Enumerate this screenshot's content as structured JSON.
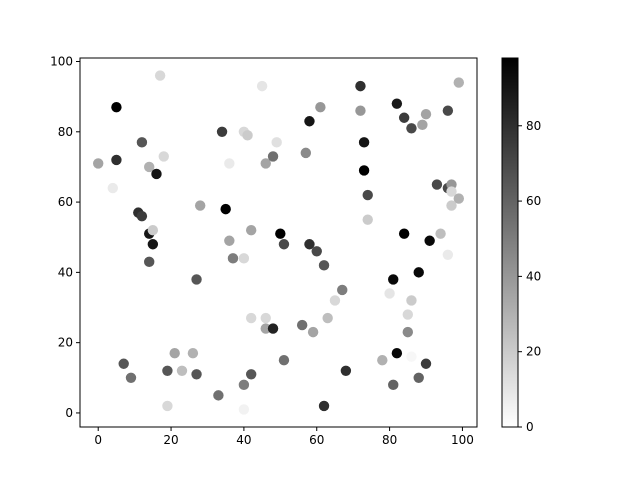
{
  "chart_data": {
    "type": "scatter",
    "title": "",
    "xlabel": "",
    "ylabel": "",
    "xlim": [
      -5,
      104
    ],
    "ylim": [
      -4,
      101
    ],
    "xticks": [
      0,
      20,
      40,
      60,
      80,
      100
    ],
    "yticks": [
      0,
      20,
      40,
      60,
      80,
      100
    ],
    "grid": false,
    "colormap": "gray_r",
    "colorbar": {
      "range": [
        0,
        98
      ],
      "ticks": [
        0,
        20,
        40,
        60,
        80
      ]
    },
    "points": [
      [
        0,
        71,
        35
      ],
      [
        4,
        64,
        8
      ],
      [
        5,
        87,
        98
      ],
      [
        5,
        72,
        80
      ],
      [
        7,
        14,
        65
      ],
      [
        9,
        10,
        55
      ],
      [
        11,
        57,
        80
      ],
      [
        12,
        56,
        75
      ],
      [
        12,
        77,
        65
      ],
      [
        14,
        70,
        30
      ],
      [
        14,
        51,
        90
      ],
      [
        14,
        43,
        65
      ],
      [
        15,
        48,
        90
      ],
      [
        15,
        52,
        20
      ],
      [
        16,
        68,
        90
      ],
      [
        17,
        96,
        15
      ],
      [
        18,
        73,
        15
      ],
      [
        19,
        2,
        15
      ],
      [
        19,
        12,
        65
      ],
      [
        21,
        17,
        35
      ],
      [
        23,
        12,
        25
      ],
      [
        26,
        17,
        30
      ],
      [
        27,
        11,
        65
      ],
      [
        27,
        38,
        65
      ],
      [
        28,
        59,
        35
      ],
      [
        33,
        5,
        55
      ],
      [
        34,
        80,
        75
      ],
      [
        35,
        58,
        98
      ],
      [
        36,
        71,
        8
      ],
      [
        36,
        49,
        35
      ],
      [
        37,
        44,
        50
      ],
      [
        40,
        80,
        15
      ],
      [
        41,
        79,
        20
      ],
      [
        40,
        44,
        15
      ],
      [
        40,
        8,
        50
      ],
      [
        40,
        1,
        5
      ],
      [
        42,
        52,
        35
      ],
      [
        42,
        27,
        15
      ],
      [
        42,
        11,
        65
      ],
      [
        45,
        93,
        10
      ],
      [
        46,
        27,
        15
      ],
      [
        46,
        24,
        35
      ],
      [
        46,
        71,
        35
      ],
      [
        48,
        73,
        55
      ],
      [
        48,
        24,
        85
      ],
      [
        49,
        77,
        12
      ],
      [
        49,
        48,
        0
      ],
      [
        50,
        51,
        98
      ],
      [
        51,
        48,
        70
      ],
      [
        51,
        15,
        55
      ],
      [
        56,
        25,
        55
      ],
      [
        57,
        74,
        45
      ],
      [
        58,
        83,
        90
      ],
      [
        58,
        48,
        80
      ],
      [
        59,
        23,
        35
      ],
      [
        60,
        46,
        70
      ],
      [
        61,
        87,
        40
      ],
      [
        62,
        42,
        65
      ],
      [
        62,
        2,
        80
      ],
      [
        63,
        27,
        25
      ],
      [
        65,
        32,
        15
      ],
      [
        67,
        35,
        50
      ],
      [
        68,
        12,
        80
      ],
      [
        72,
        93,
        80
      ],
      [
        72,
        86,
        40
      ],
      [
        73,
        77,
        90
      ],
      [
        73,
        69,
        98
      ],
      [
        74,
        62,
        70
      ],
      [
        74,
        55,
        20
      ],
      [
        78,
        15,
        30
      ],
      [
        80,
        34,
        10
      ],
      [
        81,
        38,
        95
      ],
      [
        81,
        8,
        60
      ],
      [
        82,
        88,
        88
      ],
      [
        82,
        17,
        95
      ],
      [
        84,
        84,
        75
      ],
      [
        84,
        51,
        98
      ],
      [
        85,
        23,
        45
      ],
      [
        85,
        28,
        15
      ],
      [
        86,
        81,
        70
      ],
      [
        86,
        32,
        20
      ],
      [
        86,
        16,
        3
      ],
      [
        88,
        40,
        95
      ],
      [
        88,
        10,
        60
      ],
      [
        89,
        82,
        35
      ],
      [
        90,
        85,
        35
      ],
      [
        90,
        14,
        75
      ],
      [
        91,
        49,
        95
      ],
      [
        93,
        65,
        70
      ],
      [
        94,
        51,
        25
      ],
      [
        96,
        45,
        8
      ],
      [
        96,
        64,
        70
      ],
      [
        96,
        86,
        70
      ],
      [
        97,
        65,
        40
      ],
      [
        97,
        63,
        15
      ],
      [
        97,
        59,
        20
      ],
      [
        99,
        61,
        30
      ],
      [
        99,
        94,
        30
      ]
    ]
  }
}
